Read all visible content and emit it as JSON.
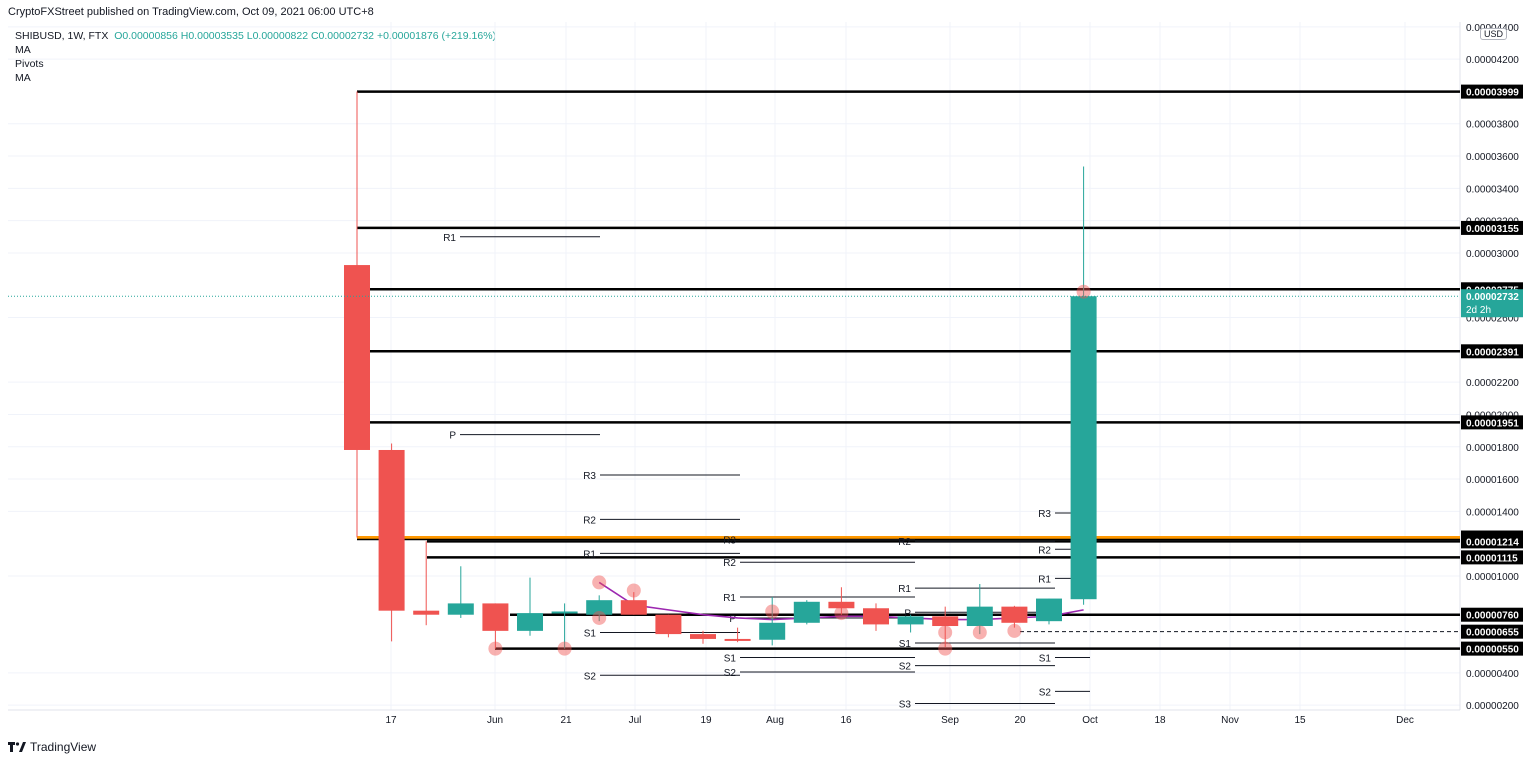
{
  "header": {
    "published": "CryptoFXStreet published on TradingView.com, Oct 09, 2021 06:00 UTC+8"
  },
  "legend": {
    "symbol": "SHIBUSD, 1W, FTX",
    "ohlc": "O0.00000856  H0.00003535  L0.00000822  C0.00002732  +0.00001876 (+219.16%)",
    "indicators": [
      "MA",
      "Pivots",
      "MA"
    ]
  },
  "currency_badge": "USD",
  "footer": {
    "brand": "TradingView"
  },
  "colors": {
    "up": "#26a69a",
    "down": "#ef5350",
    "level": "#000000",
    "ma": "#9c27b0",
    "orange": "#ff9800"
  },
  "chart_data": {
    "type": "candlestick",
    "x_tick_labels": [
      "17",
      "Jun",
      "21",
      "Jul",
      "19",
      "Aug",
      "16",
      "Sep",
      "20",
      "Oct",
      "18",
      "Nov",
      "15",
      "Dec"
    ],
    "y_tick_labels": [
      "0.00004400",
      "0.00004200",
      "0.00003800",
      "0.00003600",
      "0.00003400",
      "0.00003200",
      "0.00003000",
      "0.00002600",
      "0.00002200",
      "0.00002000",
      "0.00001800",
      "0.00001600",
      "0.00001400",
      "0.00001000",
      "0.00000400",
      "0.00000200"
    ],
    "ylim": [
      1.7e-06,
      4.43e-05
    ],
    "candles": [
      {
        "o": 2.925e-05,
        "h": 3.999e-05,
        "l": 1.238e-05,
        "c": 1.78e-05
      },
      {
        "o": 1.78e-05,
        "h": 1.82e-05,
        "l": 5.95e-06,
        "c": 7.85e-06
      },
      {
        "o": 7.85e-06,
        "h": 1.215e-05,
        "l": 6.95e-06,
        "c": 7.6e-06
      },
      {
        "o": 7.6e-06,
        "h": 1.06e-05,
        "l": 7.4e-06,
        "c": 8.3e-06
      },
      {
        "o": 8.3e-06,
        "h": 8.3e-06,
        "l": 5.5e-06,
        "c": 6.6e-06
      },
      {
        "o": 6.6e-06,
        "h": 9.9e-06,
        "l": 6.3e-06,
        "c": 7.7e-06
      },
      {
        "o": 7.7e-06,
        "h": 8.3e-06,
        "l": 5.5e-06,
        "c": 7.8e-06
      },
      {
        "o": 7.6e-06,
        "h": 8.8e-06,
        "l": 7.2e-06,
        "c": 8.5e-06
      },
      {
        "o": 8.5e-06,
        "h": 9e-06,
        "l": 7.6e-06,
        "c": 7.6e-06
      },
      {
        "o": 7.6e-06,
        "h": 7.6e-06,
        "l": 6.2e-06,
        "c": 6.4e-06
      },
      {
        "o": 6.4e-06,
        "h": 6.6e-06,
        "l": 5.8e-06,
        "c": 6.1e-06
      },
      {
        "o": 6.1e-06,
        "h": 6.8e-06,
        "l": 5.9e-06,
        "c": 6.05e-06
      },
      {
        "o": 6.05e-06,
        "h": 8.7e-06,
        "l": 5.7e-06,
        "c": 7.1e-06
      },
      {
        "o": 7.1e-06,
        "h": 8.5e-06,
        "l": 7e-06,
        "c": 8.4e-06
      },
      {
        "o": 8.4e-06,
        "h": 9.3e-06,
        "l": 7.6e-06,
        "c": 8e-06
      },
      {
        "o": 8e-06,
        "h": 8.3e-06,
        "l": 6.6e-06,
        "c": 7e-06
      },
      {
        "o": 7e-06,
        "h": 7.6e-06,
        "l": 6.5e-06,
        "c": 7.5e-06
      },
      {
        "o": 7.5e-06,
        "h": 8.1e-06,
        "l": 5.6e-06,
        "c": 6.9e-06
      },
      {
        "o": 6.9e-06,
        "h": 9.5e-06,
        "l": 6.4e-06,
        "c": 8.1e-06
      },
      {
        "o": 8.1e-06,
        "h": 8.15e-06,
        "l": 6.8e-06,
        "c": 7.1e-06
      },
      {
        "o": 7.2e-06,
        "h": 8.6e-06,
        "l": 7e-06,
        "c": 8.6e-06
      },
      {
        "o": 8.56e-06,
        "h": 3.535e-05,
        "l": 8.22e-06,
        "c": 2.732e-05
      }
    ],
    "price_levels": [
      {
        "value": 3.999e-05,
        "label": "0.00003999"
      },
      {
        "value": 3.155e-05,
        "label": "0.00003155"
      },
      {
        "value": 2.775e-05,
        "label": "0.00002775"
      },
      {
        "value": 2.391e-05,
        "label": "0.00002391"
      },
      {
        "value": 1.951e-05,
        "label": "0.00001951"
      },
      {
        "value": 1.238e-05,
        "label": "0.00001238"
      },
      {
        "value": 1.214e-05,
        "label": "0.00001214"
      },
      {
        "value": 1.115e-05,
        "label": "0.00001115"
      },
      {
        "value": 7.6e-06,
        "label": "0.00000760"
      },
      {
        "value": 6.55e-06,
        "label": "0.00000655"
      },
      {
        "value": 5.5e-06,
        "label": "0.00000550"
      }
    ],
    "last_price": {
      "value": 2.732e-05,
      "label": "0.00002732",
      "countdown": "2d 2h"
    },
    "pivots": [
      {
        "label": "R1",
        "value": 3.1e-05
      },
      {
        "label": "P",
        "value": 1.875e-05
      },
      {
        "label": "R3",
        "value": 1.625e-05
      },
      {
        "label": "R2",
        "value": 1.35e-05
      },
      {
        "label": "R1",
        "value": 1.14e-05
      },
      {
        "label": "S1",
        "value": 6.5e-06
      },
      {
        "label": "S2",
        "value": 3.85e-06
      },
      {
        "label": "R3",
        "value": 1.225e-05
      },
      {
        "label": "R2",
        "value": 1.085e-05
      },
      {
        "label": "R1",
        "value": 8.7e-06
      },
      {
        "label": "P",
        "value": 7.4e-06
      },
      {
        "label": "S1",
        "value": 4.95e-06
      },
      {
        "label": "S2",
        "value": 4.05e-06
      },
      {
        "label": "R2",
        "value": 1.215e-05
      },
      {
        "label": "R1",
        "value": 9.25e-06
      },
      {
        "label": "P",
        "value": 7.75e-06
      },
      {
        "label": "S1",
        "value": 5.85e-06
      },
      {
        "label": "S2",
        "value": 4.45e-06
      },
      {
        "label": "S3",
        "value": 2.1e-06
      },
      {
        "label": "R3",
        "value": 1.39e-05
      },
      {
        "label": "R2",
        "value": 1.165e-05
      },
      {
        "label": "R1",
        "value": 9.85e-06
      },
      {
        "label": "S1",
        "value": 4.95e-06
      },
      {
        "label": "S2",
        "value": 2.85e-06
      }
    ]
  }
}
